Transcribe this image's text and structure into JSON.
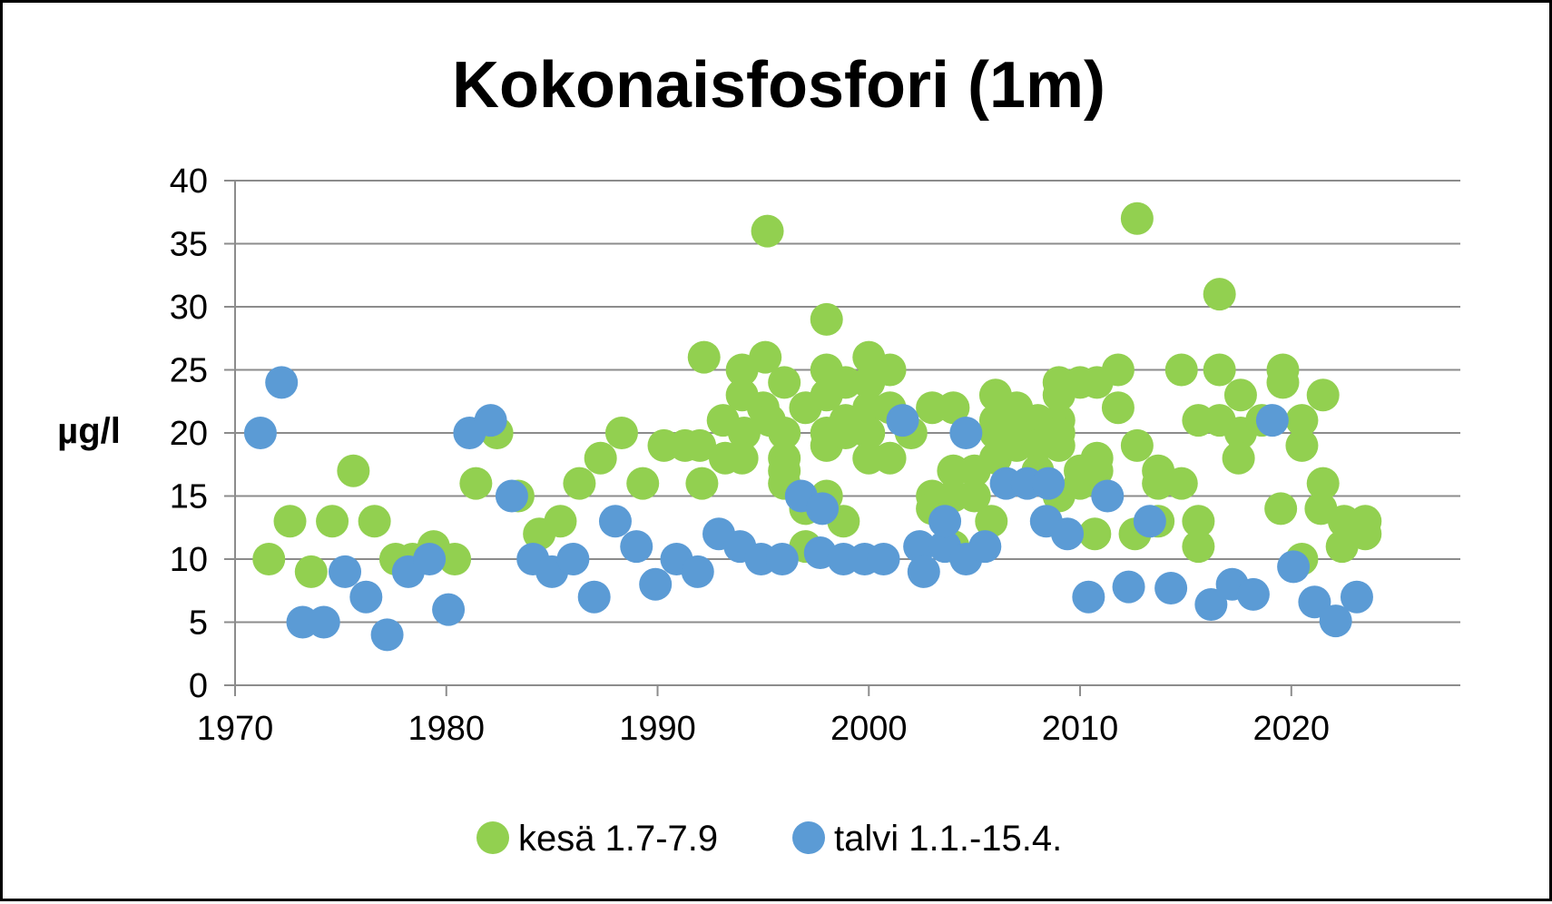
{
  "chart_data": {
    "type": "scatter",
    "title": "Kokonaisfosfori (1m)",
    "xlabel": "",
    "ylabel": "µg/l",
    "xlim": [
      1970,
      2028
    ],
    "ylim": [
      0,
      40
    ],
    "x_ticks": [
      1970,
      1980,
      1990,
      2000,
      2010,
      2020
    ],
    "x_tick_labels": [
      "1970",
      "1980",
      "1990",
      "2000",
      "2010",
      "2020"
    ],
    "y_ticks": [
      0,
      5,
      10,
      15,
      20,
      25,
      30,
      35,
      40
    ],
    "y_tick_labels": [
      "0",
      "5",
      "10",
      "15",
      "20",
      "25",
      "30",
      "35",
      "40"
    ],
    "grid": "horizontal",
    "legend_position": "bottom",
    "series": [
      {
        "name": "kesä 1.7-7.9",
        "color": "#92D050",
        "points": [
          [
            1971.6,
            10
          ],
          [
            1972.6,
            13
          ],
          [
            1973.6,
            9
          ],
          [
            1974.6,
            13
          ],
          [
            1975.6,
            17
          ],
          [
            1976.6,
            13
          ],
          [
            1977.6,
            10
          ],
          [
            1978.4,
            10
          ],
          [
            1979.4,
            11
          ],
          [
            1980.4,
            10
          ],
          [
            1981.4,
            16
          ],
          [
            1982.4,
            20
          ],
          [
            1983.4,
            15
          ],
          [
            1984.4,
            12
          ],
          [
            1985.4,
            13
          ],
          [
            1986.3,
            16
          ],
          [
            1987.3,
            18
          ],
          [
            1988.3,
            20
          ],
          [
            1989.3,
            16
          ],
          [
            1990.3,
            19
          ],
          [
            1991.3,
            19
          ],
          [
            1992.0,
            19
          ],
          [
            1992.2,
            26
          ],
          [
            1992.1,
            16
          ],
          [
            1993.1,
            21
          ],
          [
            1993.2,
            18
          ],
          [
            1994.0,
            25
          ],
          [
            1994.0,
            23
          ],
          [
            1994.1,
            20
          ],
          [
            1994.0,
            18
          ],
          [
            1995.1,
            26
          ],
          [
            1995.2,
            36
          ],
          [
            1995.0,
            22
          ],
          [
            1995.3,
            21
          ],
          [
            1996.0,
            24
          ],
          [
            1996.0,
            20
          ],
          [
            1996.0,
            18
          ],
          [
            1996.0,
            17
          ],
          [
            1996.0,
            16
          ],
          [
            1997.0,
            22
          ],
          [
            1997.0,
            14
          ],
          [
            1997.0,
            11
          ],
          [
            1998.0,
            29
          ],
          [
            1998.0,
            25
          ],
          [
            1998.0,
            23
          ],
          [
            1998.0,
            20
          ],
          [
            1998.0,
            19
          ],
          [
            1998.0,
            15
          ],
          [
            1998.9,
            24
          ],
          [
            1998.9,
            21
          ],
          [
            1998.9,
            20
          ],
          [
            1998.8,
            13
          ],
          [
            2000.0,
            26
          ],
          [
            2000.0,
            24
          ],
          [
            2000.0,
            22
          ],
          [
            2000.0,
            20
          ],
          [
            2000.0,
            18
          ],
          [
            2001.0,
            25
          ],
          [
            2001.0,
            22
          ],
          [
            2001.0,
            18
          ],
          [
            2002.0,
            20
          ],
          [
            2003.0,
            22
          ],
          [
            2003.0,
            15
          ],
          [
            2003.0,
            14
          ],
          [
            2004.0,
            22
          ],
          [
            2004.0,
            17
          ],
          [
            2004.0,
            15
          ],
          [
            2004.0,
            11
          ],
          [
            2005.0,
            17
          ],
          [
            2005.0,
            15
          ],
          [
            2005.8,
            13
          ],
          [
            2006.0,
            23
          ],
          [
            2006.0,
            21
          ],
          [
            2006.0,
            20
          ],
          [
            2006.0,
            18
          ],
          [
            2007.0,
            22
          ],
          [
            2007.0,
            20
          ],
          [
            2007.0,
            19
          ],
          [
            2008.0,
            21
          ],
          [
            2008.0,
            20
          ],
          [
            2008.0,
            19
          ],
          [
            2008.0,
            17
          ],
          [
            2009.0,
            24
          ],
          [
            2009.0,
            23
          ],
          [
            2009.0,
            21
          ],
          [
            2009.0,
            20
          ],
          [
            2009.0,
            19
          ],
          [
            2009.0,
            15
          ],
          [
            2010.0,
            24
          ],
          [
            2010.0,
            17
          ],
          [
            2010.0,
            16
          ],
          [
            2010.8,
            24
          ],
          [
            2010.8,
            18
          ],
          [
            2010.8,
            17
          ],
          [
            2010.7,
            12
          ],
          [
            2011.8,
            25
          ],
          [
            2011.8,
            22
          ],
          [
            2012.7,
            37
          ],
          [
            2012.7,
            19
          ],
          [
            2012.6,
            12
          ],
          [
            2013.7,
            17
          ],
          [
            2013.7,
            16
          ],
          [
            2013.7,
            13
          ],
          [
            2014.8,
            25
          ],
          [
            2014.8,
            16
          ],
          [
            2015.6,
            21
          ],
          [
            2015.6,
            13
          ],
          [
            2015.6,
            11
          ],
          [
            2016.6,
            31
          ],
          [
            2016.6,
            25
          ],
          [
            2016.6,
            21
          ],
          [
            2017.6,
            23
          ],
          [
            2017.6,
            20
          ],
          [
            2017.5,
            18
          ],
          [
            2018.6,
            21
          ],
          [
            2019.6,
            25
          ],
          [
            2019.6,
            24
          ],
          [
            2019.5,
            14
          ],
          [
            2020.5,
            21
          ],
          [
            2020.5,
            19
          ],
          [
            2020.5,
            10
          ],
          [
            2021.5,
            23
          ],
          [
            2021.5,
            16
          ],
          [
            2021.4,
            14
          ],
          [
            2022.5,
            13
          ],
          [
            2022.4,
            11
          ],
          [
            2023.5,
            13
          ],
          [
            2023.5,
            12
          ]
        ]
      },
      {
        "name": "talvi 1.1.-15.4.",
        "color": "#5B9BD5",
        "points": [
          [
            1971.2,
            20
          ],
          [
            1972.2,
            24
          ],
          [
            1973.2,
            5
          ],
          [
            1974.2,
            5
          ],
          [
            1975.2,
            9
          ],
          [
            1976.2,
            7
          ],
          [
            1977.2,
            4
          ],
          [
            1978.2,
            9
          ],
          [
            1979.2,
            10
          ],
          [
            1980.1,
            6
          ],
          [
            1981.1,
            20
          ],
          [
            1982.1,
            21
          ],
          [
            1983.1,
            15
          ],
          [
            1984.1,
            10
          ],
          [
            1985.0,
            9
          ],
          [
            1986.0,
            10
          ],
          [
            1987.0,
            7
          ],
          [
            1988.0,
            13
          ],
          [
            1989.0,
            11
          ],
          [
            1989.9,
            8
          ],
          [
            1990.9,
            10
          ],
          [
            1991.9,
            9
          ],
          [
            1992.9,
            12
          ],
          [
            1993.9,
            11
          ],
          [
            1994.9,
            10
          ],
          [
            1995.9,
            10
          ],
          [
            1996.8,
            15
          ],
          [
            1997.7,
            10.5
          ],
          [
            1997.8,
            14
          ],
          [
            1998.8,
            10
          ],
          [
            1999.8,
            10
          ],
          [
            2000.7,
            10
          ],
          [
            2001.6,
            21
          ],
          [
            2002.4,
            11
          ],
          [
            2002.6,
            9
          ],
          [
            2003.6,
            11
          ],
          [
            2003.6,
            13
          ],
          [
            2004.6,
            20
          ],
          [
            2004.6,
            10
          ],
          [
            2005.5,
            11
          ],
          [
            2006.5,
            16
          ],
          [
            2007.5,
            16
          ],
          [
            2008.5,
            16
          ],
          [
            2008.4,
            13
          ],
          [
            2009.4,
            12
          ],
          [
            2010.4,
            7
          ],
          [
            2011.3,
            15
          ],
          [
            2012.3,
            7.8
          ],
          [
            2013.3,
            13
          ],
          [
            2014.3,
            7.7
          ],
          [
            2016.2,
            6.4
          ],
          [
            2017.2,
            8
          ],
          [
            2018.2,
            7.2
          ],
          [
            2019.1,
            21
          ],
          [
            2020.1,
            9.4
          ],
          [
            2021.1,
            6.6
          ],
          [
            2022.1,
            5.1
          ],
          [
            2023.1,
            7
          ]
        ]
      }
    ]
  }
}
